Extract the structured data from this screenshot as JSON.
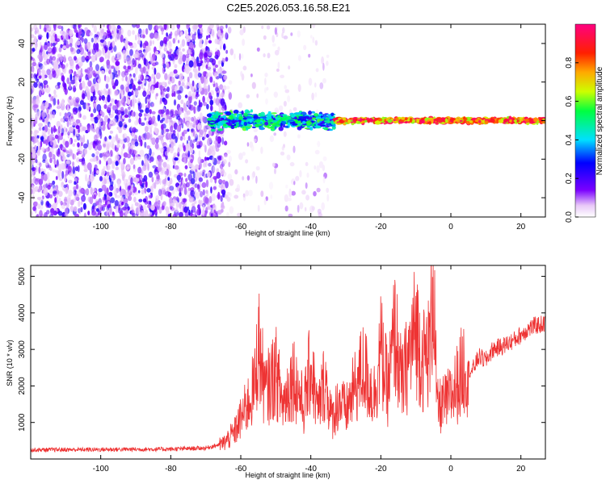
{
  "figure_title": "C2E5.2026.053.16.58.E21",
  "chart_data": [
    {
      "type": "heatmap",
      "title": "C2E5.2026.053.16.58.E21",
      "xlabel": "Height of straight line (km)",
      "ylabel": "Frequency (Hz)",
      "xlim": [
        -120,
        27
      ],
      "ylim": [
        -50,
        50
      ],
      "xticks": [
        -100,
        -80,
        -60,
        -40,
        -20,
        0,
        20
      ],
      "yticks": [
        -40,
        -20,
        0,
        20,
        40
      ],
      "colorbar": {
        "label": "Normalized spectral amplitude",
        "range": [
          0,
          1
        ],
        "ticks": [
          0.0,
          0.2,
          0.4,
          0.6,
          0.8
        ],
        "colormap": "hsv-reversed"
      },
      "features": [
        {
          "name": "noise-region",
          "x_range": [
            -120,
            -64
          ],
          "freq_range": [
            -50,
            50
          ],
          "amplitude": [
            0.05,
            0.25
          ]
        },
        {
          "name": "sparse-region",
          "x_range": [
            -64,
            -35
          ],
          "freq_range": [
            -50,
            50
          ],
          "amplitude": [
            0.02,
            0.1
          ]
        },
        {
          "name": "emerging-line",
          "x_range": [
            -69,
            -33
          ],
          "freq_center": 0,
          "freq_spread": 4,
          "amplitude": [
            0.2,
            0.6
          ]
        },
        {
          "name": "strong-line",
          "x_range": [
            -33,
            27
          ],
          "freq_center": 0,
          "freq_spread": 1.2,
          "amplitude": [
            0.6,
            1.0
          ]
        }
      ]
    },
    {
      "type": "line",
      "xlabel": "Height of straight line (km)",
      "ylabel": "SNR (10 * v/v)",
      "xlim": [
        -120,
        27
      ],
      "ylim": [
        0,
        5300
      ],
      "xticks": [
        -100,
        -80,
        -60,
        -40,
        -20,
        0,
        20
      ],
      "yticks": [
        1000,
        2000,
        3000,
        4000,
        5000
      ],
      "line_color": "#ee3333",
      "series": [
        {
          "name": "SNR",
          "x": [
            -120,
            -100,
            -80,
            -70,
            -65,
            -62,
            -60,
            -58,
            -56,
            -55,
            -53,
            -50,
            -48,
            -45,
            -42,
            -40,
            -38,
            -36,
            -34,
            -32,
            -30,
            -28,
            -25,
            -22,
            -20,
            -18,
            -16,
            -14,
            -12,
            -10,
            -8,
            -6,
            -5,
            -4,
            -2,
            0,
            2,
            4,
            6,
            8,
            10,
            12,
            15,
            18,
            20,
            22,
            24,
            27
          ],
          "y": [
            250,
            260,
            270,
            300,
            420,
            700,
            1100,
            1500,
            2000,
            3200,
            1800,
            2400,
            1500,
            2300,
            1400,
            2600,
            1300,
            2200,
            1100,
            1600,
            1300,
            1800,
            2500,
            1700,
            3000,
            1900,
            3500,
            2000,
            2800,
            3600,
            2700,
            3000,
            5200,
            1400,
            1500,
            1700,
            2100,
            2600,
            2400,
            2800,
            2700,
            3000,
            3100,
            3250,
            3400,
            3550,
            3650,
            3700
          ]
        }
      ]
    }
  ]
}
